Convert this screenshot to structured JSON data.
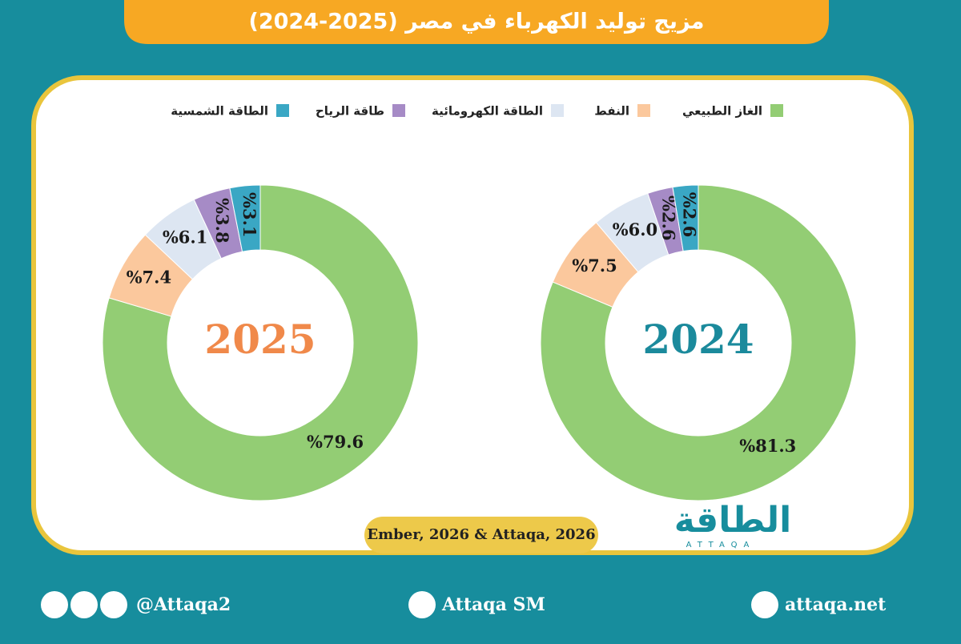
{
  "title": "مزيج توليد الكهرباء في مصر (2025-2024)",
  "chart_data": [
    {
      "type": "pie",
      "center_label": "2024",
      "center_color": "#1b8a9c",
      "categories": [
        "الغاز الطبيعي",
        "النفط",
        "الطاقة الكهرومائية",
        "طاقة الرياح",
        "الطاقة الشمسية"
      ],
      "values": [
        81.3,
        7.5,
        6.0,
        2.6,
        2.6
      ],
      "value_labels": [
        "%81.3",
        "%7.5",
        "%6.0",
        "%2.6",
        "%2.6"
      ],
      "colors": [
        "#93cd74",
        "#fbc89d",
        "#dde6f2",
        "#a68bc6",
        "#3aa7c4"
      ]
    },
    {
      "type": "pie",
      "center_label": "2025",
      "center_color": "#f0894a",
      "categories": [
        "الغاز الطبيعي",
        "النفط",
        "الطاقة الكهرومائية",
        "طاقة الرياح",
        "الطاقة الشمسية"
      ],
      "values": [
        79.6,
        7.4,
        6.1,
        3.8,
        3.1
      ],
      "value_labels": [
        "%79.6",
        "%7.4",
        "%6.1",
        "%3.8",
        "%3.1"
      ],
      "colors": [
        "#93cd74",
        "#fbc89d",
        "#dde6f2",
        "#a68bc6",
        "#3aa7c4"
      ]
    }
  ],
  "source": "Ember, 2026 & Attaqa, 2026",
  "logo": {
    "arabic": "الطاقة",
    "latin": "ATTAQA"
  },
  "footer": {
    "social": "@Attaqa2",
    "youtube": "Attaqa SM",
    "website": "attaqa.net"
  }
}
